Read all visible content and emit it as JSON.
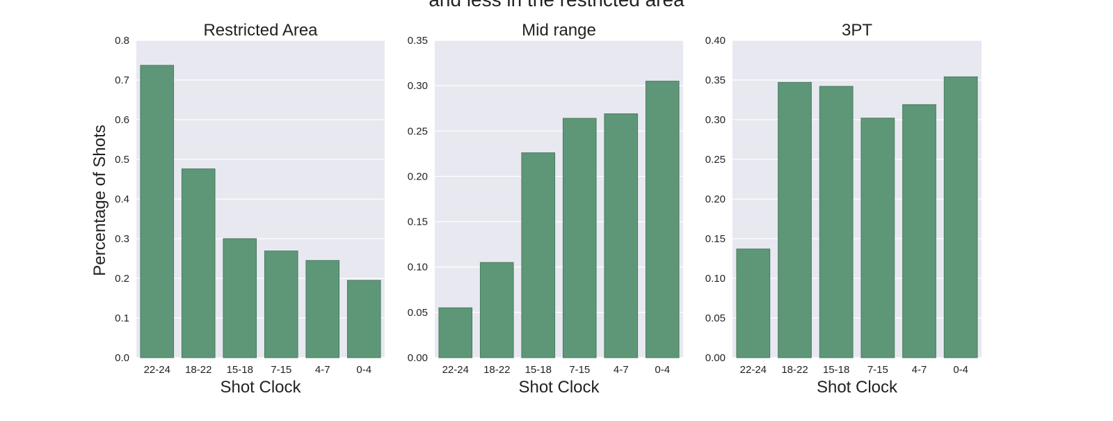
{
  "figure": {
    "suptitle": "and less in the restricted area"
  },
  "colors": {
    "bar": "#5d9777",
    "bar_edge": "#4a7a60",
    "plot_bg": "#e8e8f0",
    "grid": "#ffffff",
    "text": "#222222"
  },
  "chart_data": [
    {
      "type": "bar",
      "title": "Restricted Area",
      "xlabel": "Shot Clock",
      "ylabel": "Percentage of Shots",
      "categories": [
        "22-24",
        "18-22",
        "15-18",
        "7-15",
        "4-7",
        "0-4"
      ],
      "values": [
        0.737,
        0.476,
        0.3,
        0.269,
        0.245,
        0.195
      ],
      "ylim": [
        0,
        0.8
      ],
      "yticks": [
        "0.0",
        "0.1",
        "0.2",
        "0.3",
        "0.4",
        "0.5",
        "0.6",
        "0.7",
        "0.8"
      ],
      "grid": true
    },
    {
      "type": "bar",
      "title": "Mid range",
      "xlabel": "Shot Clock",
      "ylabel": "",
      "categories": [
        "22-24",
        "18-22",
        "15-18",
        "7-15",
        "4-7",
        "0-4"
      ],
      "values": [
        0.055,
        0.105,
        0.226,
        0.264,
        0.269,
        0.305
      ],
      "ylim": [
        0,
        0.35
      ],
      "yticks": [
        "0.00",
        "0.05",
        "0.10",
        "0.15",
        "0.20",
        "0.25",
        "0.30",
        "0.35"
      ],
      "grid": true
    },
    {
      "type": "bar",
      "title": "3PT",
      "xlabel": "Shot Clock",
      "ylabel": "",
      "categories": [
        "22-24",
        "18-22",
        "15-18",
        "7-15",
        "4-7",
        "0-4"
      ],
      "values": [
        0.137,
        0.347,
        0.342,
        0.302,
        0.319,
        0.354
      ],
      "ylim": [
        0,
        0.4
      ],
      "yticks": [
        "0.00",
        "0.05",
        "0.10",
        "0.15",
        "0.20",
        "0.25",
        "0.30",
        "0.35",
        "0.40"
      ],
      "grid": true
    }
  ]
}
